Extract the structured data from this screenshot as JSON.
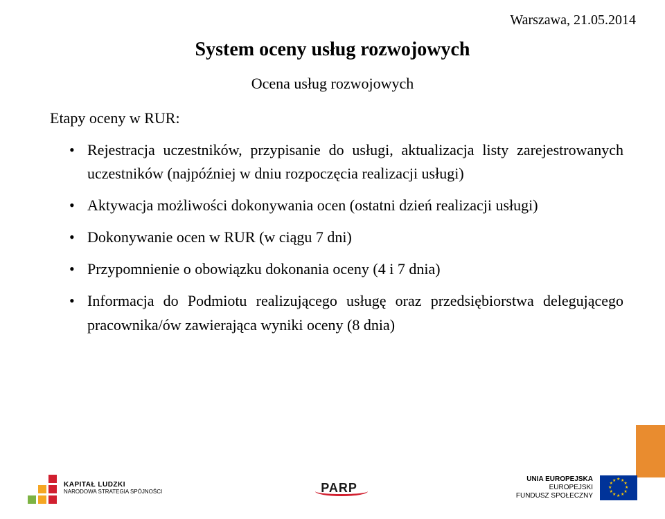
{
  "header": {
    "date": "Warszawa, 21.05.2014"
  },
  "title": "System oceny usług rozwojowych",
  "subtitle": "Ocena usług rozwojowych",
  "stage_label": "Etapy oceny w RUR:",
  "bullets": [
    "Rejestracja uczestników, przypisanie do usługi, aktualizacja listy zarejestrowanych uczestników (najpóźniej w dniu rozpoczęcia realizacji usługi)",
    "Aktywacja możliwości dokonywania ocen (ostatni dzień realizacji usługi)",
    "Dokonywanie ocen w RUR (w ciągu 7 dni)",
    "Przypomnienie o obowiązku dokonania oceny (4 i 7 dnia)",
    "Informacja do Podmiotu realizującego usługę oraz przedsiębiorstwa delegującego pracownika/ów zawierająca wyniki oceny (8 dnia)"
  ],
  "styles": {
    "page_bg": "#ffffff",
    "text_color": "#000000",
    "accent_bar_color": "#e98c2f",
    "title_fontsize": 28,
    "subtitle_fontsize": 22,
    "body_fontsize": 22,
    "date_fontsize": 20
  },
  "footer": {
    "kapital": {
      "line1": "KAPITAŁ LUDZKI",
      "line2": "NARODOWA STRATEGIA SPÓJNOŚCI",
      "bar_colors": [
        "#ffffff",
        "#ffffff",
        "#d11f2f",
        "#ffffff",
        "#f5a623",
        "#d11f2f",
        "#7db343",
        "#f5a623",
        "#d11f2f"
      ]
    },
    "parp": {
      "text": "PARP",
      "swoosh_color": "#d11f2f"
    },
    "ue": {
      "line1": "UNIA EUROPEJSKA",
      "line2": "EUROPEJSKI",
      "line3": "FUNDUSZ SPOŁECZNY",
      "flag_bg": "#003399",
      "star_color": "#ffcc00"
    }
  }
}
